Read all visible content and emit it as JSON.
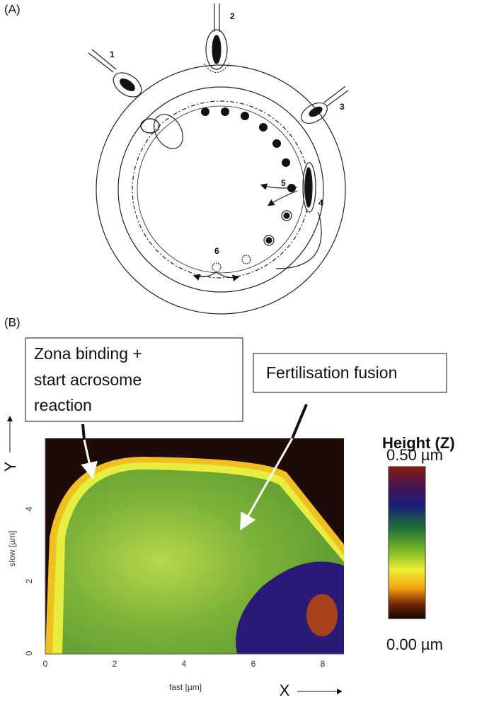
{
  "panel_a": {
    "label": "(A)",
    "steps": [
      "1",
      "2",
      "3",
      "4",
      "5",
      "6"
    ]
  },
  "panel_b": {
    "label": "(B)",
    "callouts": [
      {
        "lines": [
          "Zona binding +",
          "start acrosome",
          "reaction"
        ]
      },
      {
        "lines": [
          "Fertilisation fusion"
        ]
      }
    ],
    "x_axis": {
      "title": "fast [µm]",
      "ticks": [
        0,
        2,
        4,
        6,
        8
      ],
      "arrow_label": "X"
    },
    "y_axis": {
      "title": "slow [µm]",
      "ticks": [
        0,
        2,
        4
      ],
      "arrow_label": "Y"
    },
    "colorbar": {
      "title": "Height (Z)",
      "max_label": "0.50 µm",
      "min_label": "0.00 µm"
    }
  }
}
